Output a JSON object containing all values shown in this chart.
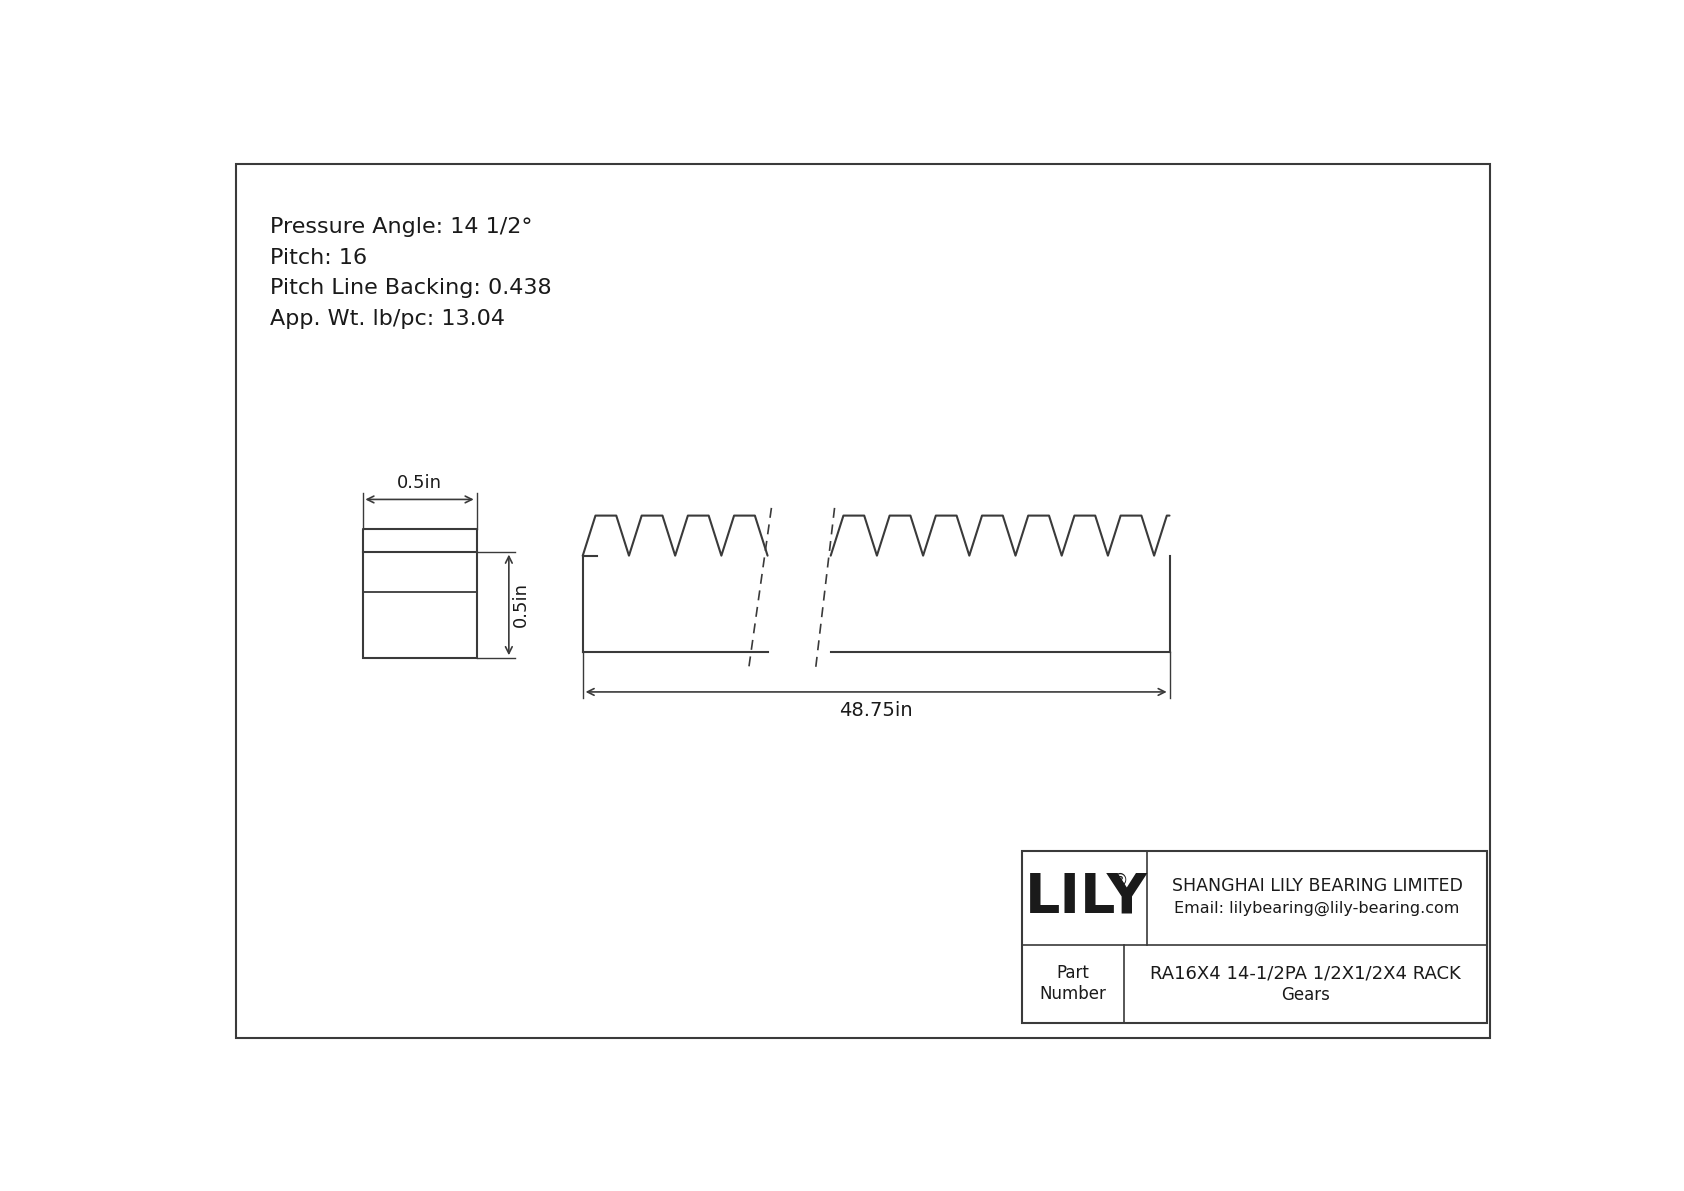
{
  "bg_color": "#ffffff",
  "line_color": "#3a3a3a",
  "text_color": "#1a1a1a",
  "info_lines": [
    "Pressure Angle: 14 1/2°",
    "Pitch: 16",
    "Pitch Line Backing: 0.438",
    "App. Wt. lb/pc: 13.04"
  ],
  "dim_width_label": "0.5in",
  "dim_height_label": "0.5in",
  "dim_length_label": "48.75in",
  "title_company": "SHANGHAI LILY BEARING LIMITED",
  "title_email": "Email: lilybearing@lily-bearing.com",
  "title_logo": "LILY",
  "title_logo_reg": "®",
  "part_label": "Part\nNumber",
  "part_number": "RA16X4 14-1/2PA 1/2X1/2X4 RACK",
  "part_category": "Gears"
}
